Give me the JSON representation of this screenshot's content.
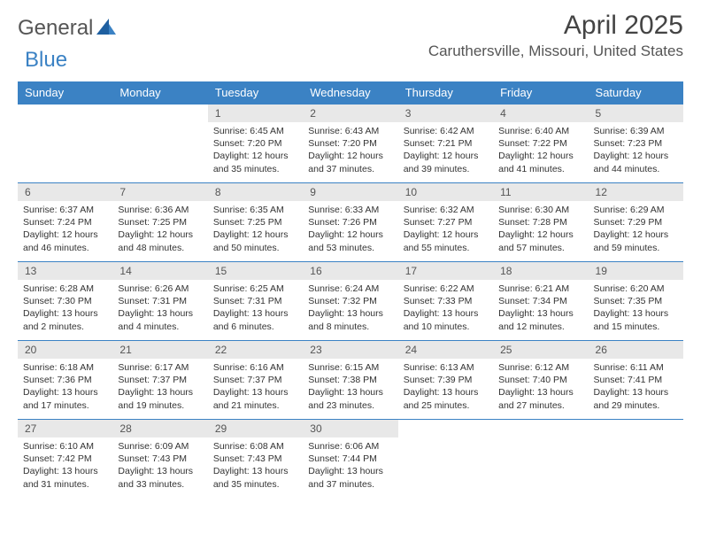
{
  "logo": {
    "text1": "General",
    "text2": "Blue"
  },
  "title": "April 2025",
  "location": "Caruthersville, Missouri, United States",
  "colors": {
    "header_bg": "#3b82c4",
    "header_fg": "#ffffff",
    "daynum_bg": "#e8e8e8",
    "text": "#333333",
    "rule": "#3b82c4"
  },
  "weekdays": [
    "Sunday",
    "Monday",
    "Tuesday",
    "Wednesday",
    "Thursday",
    "Friday",
    "Saturday"
  ],
  "grid": {
    "first_weekday_index": 2,
    "num_days": 30
  },
  "days": {
    "1": {
      "sunrise": "6:45 AM",
      "sunset": "7:20 PM",
      "daylight": "12 hours and 35 minutes."
    },
    "2": {
      "sunrise": "6:43 AM",
      "sunset": "7:20 PM",
      "daylight": "12 hours and 37 minutes."
    },
    "3": {
      "sunrise": "6:42 AM",
      "sunset": "7:21 PM",
      "daylight": "12 hours and 39 minutes."
    },
    "4": {
      "sunrise": "6:40 AM",
      "sunset": "7:22 PM",
      "daylight": "12 hours and 41 minutes."
    },
    "5": {
      "sunrise": "6:39 AM",
      "sunset": "7:23 PM",
      "daylight": "12 hours and 44 minutes."
    },
    "6": {
      "sunrise": "6:37 AM",
      "sunset": "7:24 PM",
      "daylight": "12 hours and 46 minutes."
    },
    "7": {
      "sunrise": "6:36 AM",
      "sunset": "7:25 PM",
      "daylight": "12 hours and 48 minutes."
    },
    "8": {
      "sunrise": "6:35 AM",
      "sunset": "7:25 PM",
      "daylight": "12 hours and 50 minutes."
    },
    "9": {
      "sunrise": "6:33 AM",
      "sunset": "7:26 PM",
      "daylight": "12 hours and 53 minutes."
    },
    "10": {
      "sunrise": "6:32 AM",
      "sunset": "7:27 PM",
      "daylight": "12 hours and 55 minutes."
    },
    "11": {
      "sunrise": "6:30 AM",
      "sunset": "7:28 PM",
      "daylight": "12 hours and 57 minutes."
    },
    "12": {
      "sunrise": "6:29 AM",
      "sunset": "7:29 PM",
      "daylight": "12 hours and 59 minutes."
    },
    "13": {
      "sunrise": "6:28 AM",
      "sunset": "7:30 PM",
      "daylight": "13 hours and 2 minutes."
    },
    "14": {
      "sunrise": "6:26 AM",
      "sunset": "7:31 PM",
      "daylight": "13 hours and 4 minutes."
    },
    "15": {
      "sunrise": "6:25 AM",
      "sunset": "7:31 PM",
      "daylight": "13 hours and 6 minutes."
    },
    "16": {
      "sunrise": "6:24 AM",
      "sunset": "7:32 PM",
      "daylight": "13 hours and 8 minutes."
    },
    "17": {
      "sunrise": "6:22 AM",
      "sunset": "7:33 PM",
      "daylight": "13 hours and 10 minutes."
    },
    "18": {
      "sunrise": "6:21 AM",
      "sunset": "7:34 PM",
      "daylight": "13 hours and 12 minutes."
    },
    "19": {
      "sunrise": "6:20 AM",
      "sunset": "7:35 PM",
      "daylight": "13 hours and 15 minutes."
    },
    "20": {
      "sunrise": "6:18 AM",
      "sunset": "7:36 PM",
      "daylight": "13 hours and 17 minutes."
    },
    "21": {
      "sunrise": "6:17 AM",
      "sunset": "7:37 PM",
      "daylight": "13 hours and 19 minutes."
    },
    "22": {
      "sunrise": "6:16 AM",
      "sunset": "7:37 PM",
      "daylight": "13 hours and 21 minutes."
    },
    "23": {
      "sunrise": "6:15 AM",
      "sunset": "7:38 PM",
      "daylight": "13 hours and 23 minutes."
    },
    "24": {
      "sunrise": "6:13 AM",
      "sunset": "7:39 PM",
      "daylight": "13 hours and 25 minutes."
    },
    "25": {
      "sunrise": "6:12 AM",
      "sunset": "7:40 PM",
      "daylight": "13 hours and 27 minutes."
    },
    "26": {
      "sunrise": "6:11 AM",
      "sunset": "7:41 PM",
      "daylight": "13 hours and 29 minutes."
    },
    "27": {
      "sunrise": "6:10 AM",
      "sunset": "7:42 PM",
      "daylight": "13 hours and 31 minutes."
    },
    "28": {
      "sunrise": "6:09 AM",
      "sunset": "7:43 PM",
      "daylight": "13 hours and 33 minutes."
    },
    "29": {
      "sunrise": "6:08 AM",
      "sunset": "7:43 PM",
      "daylight": "13 hours and 35 minutes."
    },
    "30": {
      "sunrise": "6:06 AM",
      "sunset": "7:44 PM",
      "daylight": "13 hours and 37 minutes."
    }
  },
  "labels": {
    "sunrise": "Sunrise:",
    "sunset": "Sunset:",
    "daylight": "Daylight:"
  }
}
